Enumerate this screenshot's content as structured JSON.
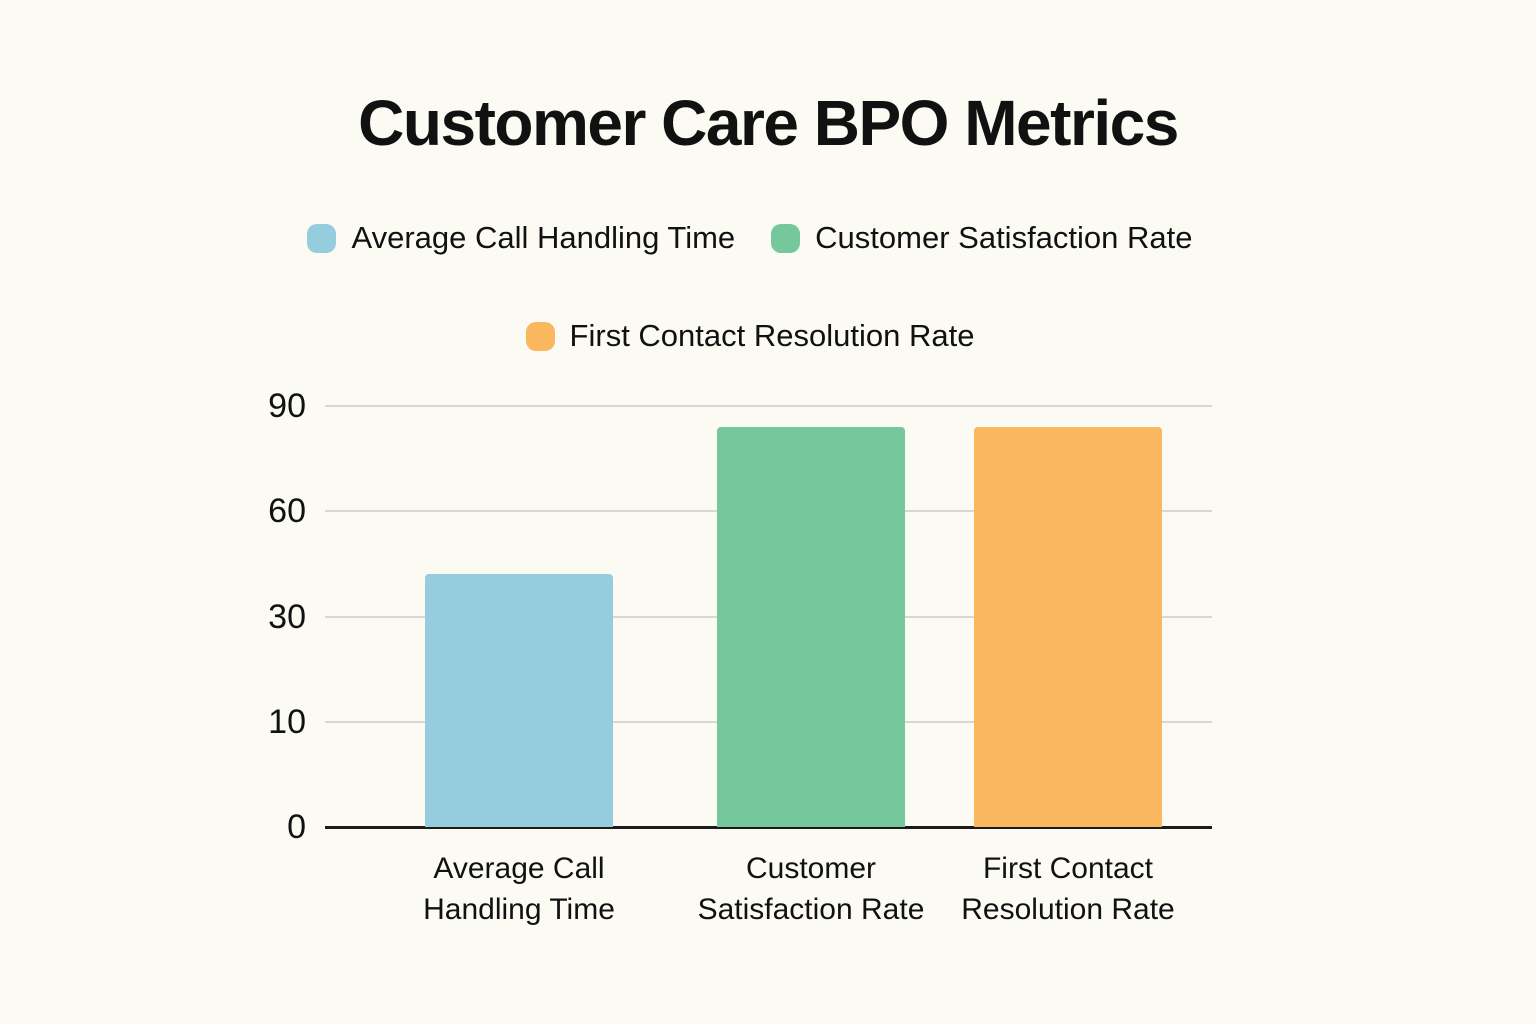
{
  "title": "Customer Care BPO Metrics",
  "colors": {
    "background": "#fbfaf3",
    "text": "#111111",
    "gridline": "#d8d7d1",
    "axis_line": "#1b1b1b",
    "blue": "#95cdde",
    "green": "#75c79c",
    "orange": "#fbb75e"
  },
  "legend": {
    "row1": [
      {
        "label": "Average Call Handling Time",
        "color": "#95cdde"
      },
      {
        "label": "Customer Satisfaction Rate",
        "color": "#75c79c"
      }
    ],
    "row2": [
      {
        "label": "First Contact Resolution Rate",
        "color": "#fbb75e"
      }
    ]
  },
  "chart_data": {
    "type": "bar",
    "title": "Customer Care BPO Metrics",
    "categories": [
      "Average Call Handling Time",
      "Customer Satisfaction Rate",
      "First Contact Resolution Rate"
    ],
    "category_lines": [
      [
        "Average Call",
        "Handling Time"
      ],
      [
        "Customer",
        "Satisfaction Rate"
      ],
      [
        "First Contact",
        "Resolution Rate"
      ]
    ],
    "values": [
      42,
      84,
      84
    ],
    "bar_colors": [
      "#95cdde",
      "#75c79c",
      "#fbb75e"
    ],
    "yticks": [
      0,
      10,
      30,
      60,
      90
    ],
    "xlabel": "",
    "ylabel": "",
    "axis_note": "y tick labels 0,10,30,60,90 are evenly spaced (piecewise scale)",
    "grid": "horizontal",
    "legend_position": "top-center"
  }
}
